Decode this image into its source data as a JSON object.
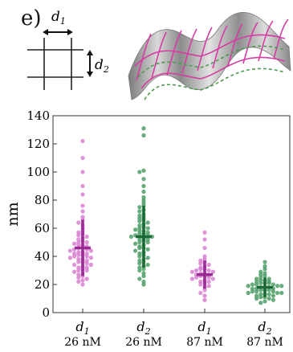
{
  "panel_label": "e)",
  "grid_schematic": {
    "d1_label": "d",
    "d1_sub": "1",
    "d2_label": "d",
    "d2_sub": "2"
  },
  "colors": {
    "d1_series": "#d87fd0",
    "d1_mean": "#9a2a94",
    "d2_series": "#4f9e67",
    "d2_mean": "#1c6b36",
    "wave_surface": "#a9a9a9",
    "wave_grid_pink": "#d63ca4",
    "wave_grid_green": "#4e9c4e"
  },
  "chart_data": {
    "type": "scatter",
    "subtype": "swarm-plot",
    "ylabel": "nm",
    "ylim": [
      0,
      140
    ],
    "yticks": [
      0,
      20,
      40,
      60,
      80,
      100,
      120,
      140
    ],
    "categories": [
      {
        "label": "d",
        "sub": "1",
        "conc": "26 nM"
      },
      {
        "label": "d",
        "sub": "2",
        "conc": "26 nM"
      },
      {
        "label": "d",
        "sub": "1",
        "conc": "87 nM"
      },
      {
        "label": "d",
        "sub": "2",
        "conc": "87 nM"
      }
    ],
    "series": [
      {
        "category_index": 0,
        "color_key": "d1_series",
        "mean": 46,
        "sd_low": 26,
        "sd_high": 66,
        "values": [
          122,
          110,
          100,
          90,
          84,
          76,
          72,
          68,
          66,
          64,
          62,
          60,
          58,
          57,
          56,
          55,
          54,
          53,
          52,
          51,
          50,
          50,
          49,
          48,
          48,
          47,
          46,
          46,
          45,
          45,
          44,
          44,
          43,
          43,
          42,
          42,
          41,
          41,
          40,
          40,
          39,
          39,
          38,
          38,
          37,
          36,
          36,
          35,
          34,
          34,
          33,
          32,
          32,
          31,
          30,
          30,
          29,
          28,
          27,
          26,
          25,
          24,
          23,
          22,
          20
        ]
      },
      {
        "category_index": 1,
        "color_key": "d2_series",
        "mean": 54,
        "sd_low": 32,
        "sd_high": 76,
        "values": [
          131,
          126,
          101,
          100,
          95,
          90,
          86,
          82,
          80,
          78,
          76,
          75,
          73,
          72,
          70,
          69,
          68,
          67,
          66,
          65,
          64,
          63,
          62,
          61,
          60,
          60,
          59,
          58,
          58,
          57,
          56,
          56,
          55,
          55,
          54,
          54,
          53,
          52,
          52,
          51,
          50,
          50,
          49,
          48,
          47,
          46,
          46,
          45,
          44,
          43,
          42,
          41,
          40,
          39,
          38,
          37,
          36,
          35,
          34,
          33,
          32,
          31,
          30,
          28,
          26,
          24,
          22,
          20
        ]
      },
      {
        "category_index": 2,
        "color_key": "d1_series",
        "mean": 27,
        "sd_low": 17,
        "sd_high": 37,
        "values": [
          57,
          52,
          46,
          40,
          38,
          37,
          36,
          35,
          34,
          33,
          32,
          31,
          31,
          30,
          30,
          29,
          29,
          28,
          28,
          27,
          27,
          26,
          26,
          25,
          25,
          24,
          24,
          23,
          22,
          22,
          21,
          20,
          19,
          18,
          16,
          14,
          12,
          9
        ]
      },
      {
        "category_index": 3,
        "color_key": "d2_series",
        "mean": 18,
        "sd_low": 11,
        "sd_high": 25,
        "values": [
          36,
          33,
          31,
          29,
          28,
          27,
          26,
          25,
          24,
          24,
          23,
          23,
          22,
          22,
          21,
          21,
          21,
          20,
          20,
          20,
          19,
          19,
          19,
          18,
          18,
          18,
          17,
          17,
          17,
          16,
          16,
          16,
          15,
          15,
          15,
          14,
          14,
          14,
          13,
          13,
          13,
          12,
          12,
          11,
          11,
          10,
          10,
          9,
          8,
          7
        ]
      }
    ]
  }
}
